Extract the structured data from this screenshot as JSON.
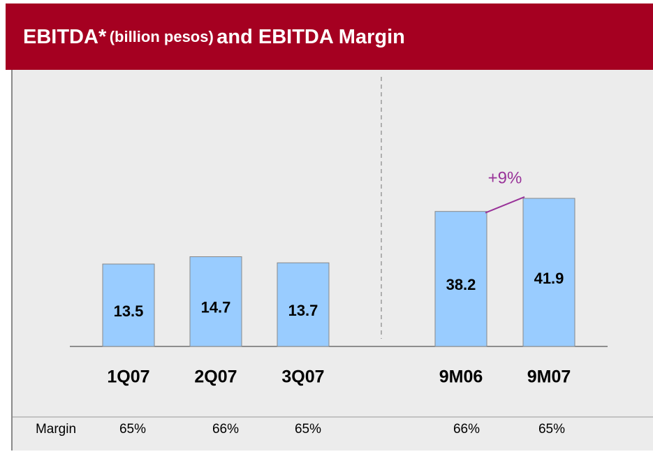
{
  "title": {
    "main": "EBITDA*",
    "unit": "(billion pesos)",
    "rest": "and EBITDA Margin"
  },
  "chart_data": [
    {
      "type": "bar",
      "categories": [
        "1Q07",
        "2Q07",
        "3Q07"
      ],
      "values": [
        13.5,
        14.7,
        13.7
      ],
      "color": "#99ccff"
    },
    {
      "type": "bar",
      "categories": [
        "9M06",
        "9M07"
      ],
      "values": [
        38.2,
        41.9
      ],
      "color": "#99ccff",
      "annotation": "+9%"
    }
  ],
  "margin_row": {
    "label": "Margin",
    "values": [
      "65%",
      "66%",
      "65%",
      "66%",
      "65%"
    ]
  }
}
